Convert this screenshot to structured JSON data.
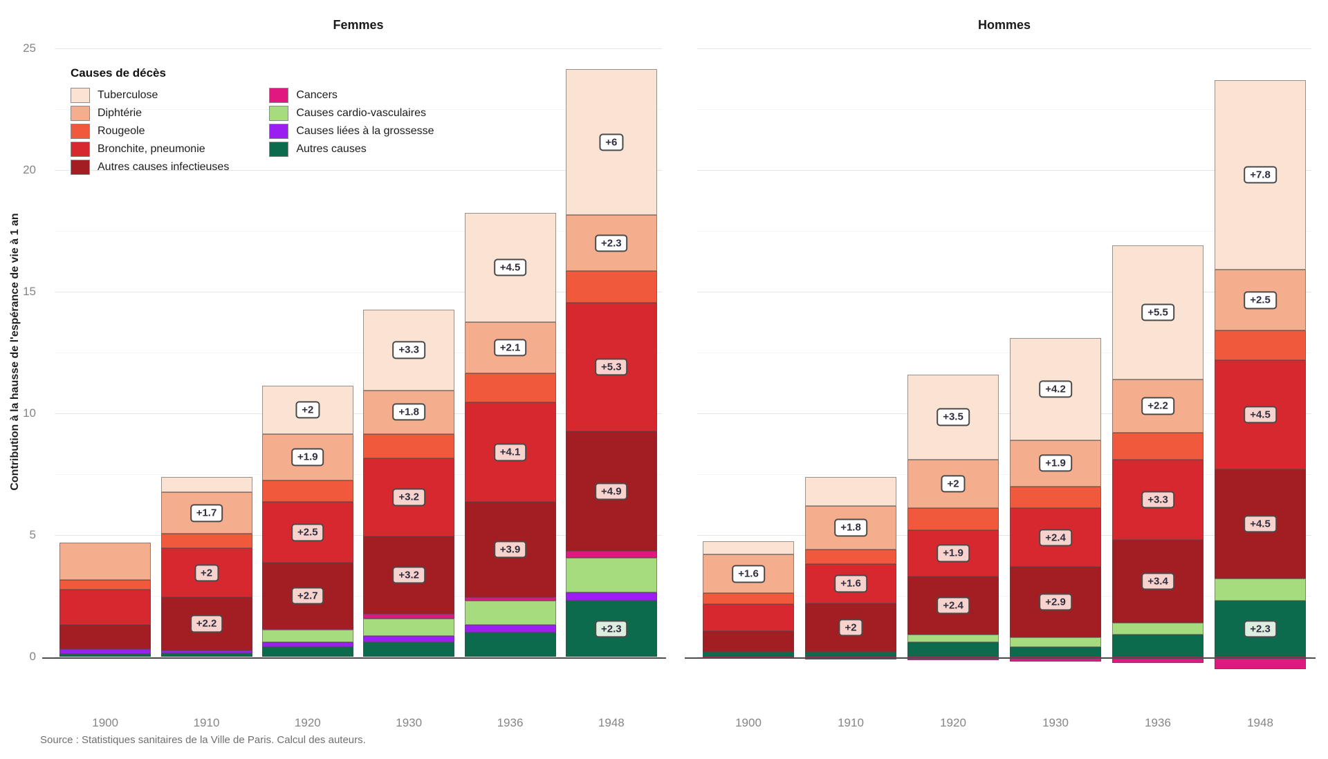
{
  "figure": {
    "y_axis_title": "Contribution à la hausse de l'espérance de vie à 1 an",
    "source": "Source : Statistiques sanitaires de la Ville de Paris. Calcul des auteurs."
  },
  "chart_data": {
    "type": "bar",
    "stacked": true,
    "grid": "horizontal major (5) + minor (2.5)",
    "legend_position": "inside top-left of Femmes panel",
    "legend_title": "Causes de décès",
    "categories": [
      "1900",
      "1910",
      "1920",
      "1930",
      "1936",
      "1948"
    ],
    "facet_titles": [
      "Femmes",
      "Hommes"
    ],
    "yticks": [
      0,
      5,
      10,
      15,
      20,
      25
    ],
    "ylim": [
      -1.2,
      25.3
    ],
    "ylabel": "Contribution à la hausse de l'espérance de vie à 1 an",
    "stack_note": "series listed legend-order (top of stack first); bars stack bottom-to-top in reverse order; negative values drawn below the zero axis",
    "series": [
      {
        "name": "Tuberculose",
        "color": "#FBE3D4",
        "label_bg": "#FFFFFF",
        "femmes": {
          "values": [
            0,
            0.65,
            2.0,
            3.3,
            4.5,
            6.0
          ],
          "labels": [
            null,
            null,
            "+2",
            "+3.3",
            "+4.5",
            "+6"
          ]
        },
        "hommes": {
          "values": [
            0.55,
            1.2,
            3.5,
            4.2,
            5.5,
            7.8
          ],
          "labels": [
            null,
            null,
            "+3.5",
            "+4.2",
            "+5.5",
            "+7.8"
          ]
        }
      },
      {
        "name": "Diphtérie",
        "color": "#F5AE8D",
        "label_bg": "#FFFFFF",
        "femmes": {
          "values": [
            1.55,
            1.7,
            1.9,
            1.8,
            2.1,
            2.3
          ],
          "labels": [
            null,
            "+1.7",
            "+1.9",
            "+1.8",
            "+2.1",
            "+2.3"
          ]
        },
        "hommes": {
          "values": [
            1.6,
            1.8,
            2.0,
            1.9,
            2.2,
            2.5
          ],
          "labels": [
            "+1.6",
            "+1.8",
            "+2",
            "+1.9",
            "+2.2",
            "+2.5"
          ]
        }
      },
      {
        "name": "Rougeole",
        "color": "#F0593C",
        "label_bg": "#F8D3CD",
        "femmes": {
          "values": [
            0.4,
            0.6,
            0.9,
            1.0,
            1.2,
            1.3
          ],
          "labels": [
            null,
            null,
            null,
            null,
            null,
            null
          ]
        },
        "hommes": {
          "values": [
            0.45,
            0.6,
            0.9,
            0.9,
            1.1,
            1.2
          ],
          "labels": [
            null,
            null,
            null,
            null,
            null,
            null
          ]
        }
      },
      {
        "name": "Bronchite, pneumonie",
        "color": "#D7282F",
        "label_bg": "#F8D3CD",
        "femmes": {
          "values": [
            1.45,
            2.0,
            2.5,
            3.2,
            4.1,
            5.3
          ],
          "labels": [
            null,
            "+2",
            "+2.5",
            "+3.2",
            "+4.1",
            "+5.3"
          ]
        },
        "hommes": {
          "values": [
            1.1,
            1.6,
            1.9,
            2.4,
            3.3,
            4.5
          ],
          "labels": [
            null,
            "+1.6",
            "+1.9",
            "+2.4",
            "+3.3",
            "+4.5"
          ]
        }
      },
      {
        "name": "Autres causes infectieuses",
        "color": "#A31E22",
        "label_bg": "#F8D3CD",
        "femmes": {
          "values": [
            1.0,
            2.2,
            2.7,
            3.2,
            3.9,
            4.9
          ],
          "labels": [
            null,
            "+2.2",
            "+2.7",
            "+3.2",
            "+3.9",
            "+4.9"
          ]
        },
        "hommes": {
          "values": [
            0.85,
            2.0,
            2.4,
            2.9,
            3.4,
            4.5
          ],
          "labels": [
            null,
            "+2",
            "+2.4",
            "+2.9",
            "+3.4",
            "+4.5"
          ]
        }
      },
      {
        "name": "Cancers",
        "color": "#E0187F",
        "label_bg": "#F8D3CD",
        "femmes": {
          "values": [
            0,
            0,
            0.05,
            0.2,
            0.15,
            0.3
          ],
          "labels": [
            null,
            null,
            null,
            null,
            null,
            null
          ]
        },
        "hommes": {
          "values": [
            -0.05,
            -0.1,
            -0.15,
            -0.2,
            -0.25,
            -0.5
          ],
          "labels": [
            null,
            null,
            null,
            null,
            null,
            null
          ]
        }
      },
      {
        "name": "Causes cardio-vasculaires",
        "color": "#A6DB7E",
        "label_bg": "#EAF5E0",
        "femmes": {
          "values": [
            0,
            0,
            0.5,
            0.7,
            1.0,
            1.4
          ],
          "labels": [
            null,
            null,
            null,
            null,
            null,
            null
          ]
        },
        "hommes": {
          "values": [
            0,
            0,
            0.3,
            0.4,
            0.5,
            0.9
          ],
          "labels": [
            null,
            null,
            null,
            null,
            null,
            null
          ]
        }
      },
      {
        "name": "Causes liées à la grossesse",
        "color": "#9B1FF0",
        "label_bg": "#EFE0FA",
        "femmes": {
          "values": [
            0.2,
            0.1,
            0.2,
            0.25,
            0.3,
            0.35
          ],
          "labels": [
            null,
            null,
            null,
            null,
            null,
            null
          ]
        },
        "hommes": {
          "values": [
            0,
            0,
            0,
            0,
            0,
            0
          ],
          "labels": [
            null,
            null,
            null,
            null,
            null,
            null
          ]
        }
      },
      {
        "name": "Autres causes",
        "color": "#0D6B4D",
        "label_bg": "#DCEEE0",
        "femmes": {
          "values": [
            0.1,
            0.15,
            0.4,
            0.6,
            1.0,
            2.3
          ],
          "labels": [
            null,
            null,
            null,
            null,
            null,
            "+2.3"
          ]
        },
        "hommes": {
          "values": [
            0.2,
            0.2,
            0.6,
            0.4,
            0.9,
            2.3
          ],
          "labels": [
            null,
            null,
            null,
            null,
            null,
            "+2.3"
          ]
        }
      }
    ]
  }
}
